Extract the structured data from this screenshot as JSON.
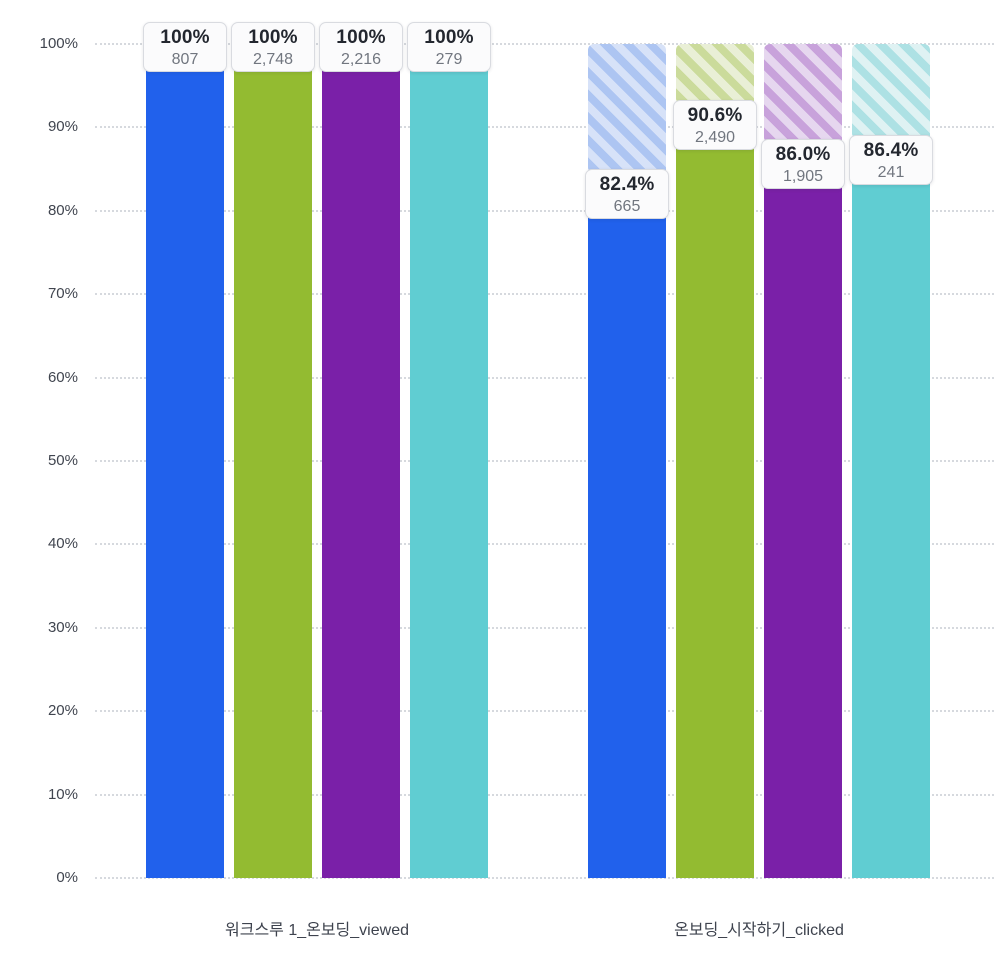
{
  "chart_data": {
    "type": "bar",
    "title": "",
    "xlabel": "",
    "ylabel": "",
    "ylim": [
      0,
      100
    ],
    "grid": "dotted-horizontal",
    "legend": "none",
    "y_ticks": [
      {
        "value": 0,
        "label": "0%"
      },
      {
        "value": 10,
        "label": "10%"
      },
      {
        "value": 20,
        "label": "20%"
      },
      {
        "value": 30,
        "label": "30%"
      },
      {
        "value": 40,
        "label": "40%"
      },
      {
        "value": 50,
        "label": "50%"
      },
      {
        "value": 60,
        "label": "60%"
      },
      {
        "value": 70,
        "label": "70%"
      },
      {
        "value": 80,
        "label": "80%"
      },
      {
        "value": 90,
        "label": "90%"
      },
      {
        "value": 100,
        "label": "100%"
      }
    ],
    "categories": [
      {
        "label": "워크스루 1_온보딩_viewed"
      },
      {
        "label": "온보딩_시작하기_clicked"
      }
    ],
    "series": [
      {
        "name": "segment-blue",
        "color": "#2161ec",
        "hatch_bg": "#d7e2f8",
        "hatch_stripe": "#adc5f2",
        "points": [
          {
            "pct": 100,
            "pct_label": "100%",
            "count": "807"
          },
          {
            "pct": 82.4,
            "pct_label": "82.4%",
            "count": "665"
          }
        ]
      },
      {
        "name": "segment-green",
        "color": "#93bb31",
        "hatch_bg": "#e9efd6",
        "hatch_stripe": "#cbdb9b",
        "points": [
          {
            "pct": 100,
            "pct_label": "100%",
            "count": "2,748"
          },
          {
            "pct": 90.6,
            "pct_label": "90.6%",
            "count": "2,490"
          }
        ]
      },
      {
        "name": "segment-purple",
        "color": "#7a20a8",
        "hatch_bg": "#e6d7ef",
        "hatch_stripe": "#c8a2db",
        "points": [
          {
            "pct": 100,
            "pct_label": "100%",
            "count": "2,216"
          },
          {
            "pct": 86.0,
            "pct_label": "86.0%",
            "count": "1,905"
          }
        ]
      },
      {
        "name": "segment-teal",
        "color": "#60cdd2",
        "hatch_bg": "#dff2f3",
        "hatch_stripe": "#ade1e4",
        "points": [
          {
            "pct": 100,
            "pct_label": "100%",
            "count": "279"
          },
          {
            "pct": 86.4,
            "pct_label": "86.4%",
            "count": "241"
          }
        ]
      }
    ]
  }
}
